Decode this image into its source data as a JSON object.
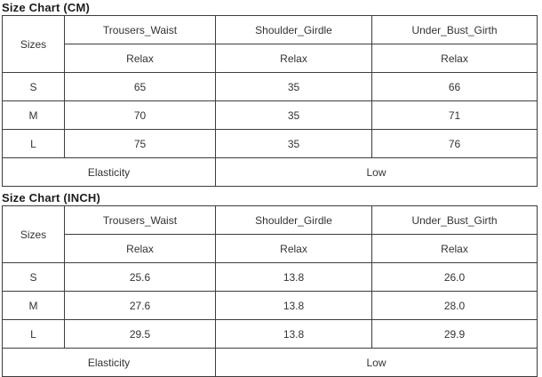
{
  "page": {
    "background": "#ffffff",
    "text_color": "#333333",
    "border_color": "#3d3d3d"
  },
  "tables": [
    {
      "title": "Size Chart (CM)",
      "sizes_header": "Sizes",
      "columns": [
        "Trousers_Waist",
        "Shoulder_Girdle",
        "Under_Bust_Girth"
      ],
      "sub_headers": [
        "Relax",
        "Relax",
        "Relax"
      ],
      "rows": [
        {
          "size": "S",
          "values": [
            "65",
            "35",
            "66"
          ]
        },
        {
          "size": "M",
          "values": [
            "70",
            "35",
            "71"
          ]
        },
        {
          "size": "L",
          "values": [
            "75",
            "35",
            "76"
          ]
        }
      ],
      "footer": {
        "label": "Elasticity",
        "value": "Low"
      }
    },
    {
      "title": "Size Chart (INCH)",
      "sizes_header": "Sizes",
      "columns": [
        "Trousers_Waist",
        "Shoulder_Girdle",
        "Under_Bust_Girth"
      ],
      "sub_headers": [
        "Relax",
        "Relax",
        "Relax"
      ],
      "rows": [
        {
          "size": "S",
          "values": [
            "25.6",
            "13.8",
            "26.0"
          ]
        },
        {
          "size": "M",
          "values": [
            "27.6",
            "13.8",
            "28.0"
          ]
        },
        {
          "size": "L",
          "values": [
            "29.5",
            "13.8",
            "29.9"
          ]
        }
      ],
      "footer": {
        "label": "Elasticity",
        "value": "Low"
      }
    }
  ]
}
